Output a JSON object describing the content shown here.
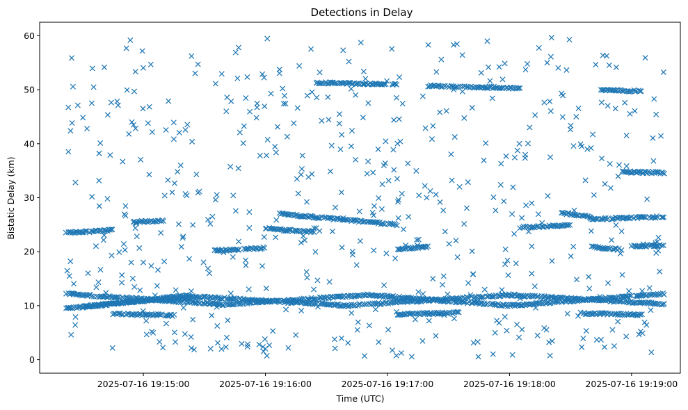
{
  "chart_data": {
    "type": "scatter",
    "title": "Detections in Delay",
    "xlabel": "Time (UTC)",
    "ylabel": "Bistatic Delay (km)",
    "marker": "x",
    "color": "#1f77b4",
    "grid": false,
    "xlim": [
      "2025-07-16 19:14:09",
      "2025-07-16 19:19:24"
    ],
    "ylim": [
      -2.5,
      62.5
    ],
    "x_ticks": [
      "2025-07-16 19:15:00",
      "2025-07-16 19:16:00",
      "2025-07-16 19:17:00",
      "2025-07-16 19:18:00",
      "2025-07-16 19:19:00"
    ],
    "y_ticks": [
      0,
      10,
      20,
      30,
      40,
      50,
      60
    ],
    "time_range": [
      "2025-07-16 19:14:22",
      "2025-07-16 19:19:16"
    ],
    "tracks": [
      {
        "x": [
          "2025-07-16 19:14:22",
          "2025-07-16 19:15:40",
          "2025-07-16 19:16:50",
          "2025-07-16 19:18:00",
          "2025-07-16 19:19:16"
        ],
        "y": [
          12.2,
          10.2,
          12.0,
          10.0,
          12.2
        ]
      },
      {
        "x": [
          "2025-07-16 19:14:22",
          "2025-07-16 19:15:20",
          "2025-07-16 19:16:40",
          "2025-07-16 19:18:00",
          "2025-07-16 19:19:16"
        ],
        "y": [
          9.5,
          11.8,
          10.0,
          12.0,
          10.3
        ]
      },
      {
        "x": [
          "2025-07-16 19:14:30",
          "2025-07-16 19:14:55",
          "2025-07-16 19:15:25"
        ],
        "y": [
          9.7,
          10.8,
          11.5
        ]
      },
      {
        "x": [
          "2025-07-16 19:14:45",
          "2025-07-16 19:15:15"
        ],
        "y": [
          8.5,
          8.2
        ]
      },
      {
        "x": [
          "2025-07-16 19:17:05",
          "2025-07-16 19:17:35"
        ],
        "y": [
          8.4,
          8.7
        ]
      },
      {
        "x": [
          "2025-07-16 19:18:35",
          "2025-07-16 19:19:05"
        ],
        "y": [
          8.6,
          8.3
        ]
      },
      {
        "x": [
          "2025-07-16 19:14:22",
          "2025-07-16 19:14:45"
        ],
        "y": [
          23.5,
          24.0
        ]
      },
      {
        "x": [
          "2025-07-16 19:14:55",
          "2025-07-16 19:15:10"
        ],
        "y": [
          25.5,
          25.8
        ]
      },
      {
        "x": [
          "2025-07-16 19:15:35",
          "2025-07-16 19:16:00"
        ],
        "y": [
          20.2,
          20.7
        ]
      },
      {
        "x": [
          "2025-07-16 19:16:00",
          "2025-07-16 19:16:25"
        ],
        "y": [
          24.3,
          23.6
        ]
      },
      {
        "x": [
          "2025-07-16 19:16:07",
          "2025-07-16 19:17:05"
        ],
        "y": [
          27.0,
          25.0
        ]
      },
      {
        "x": [
          "2025-07-16 19:16:25",
          "2025-07-16 19:17:05"
        ],
        "y": [
          51.3,
          51.0
        ]
      },
      {
        "x": [
          "2025-07-16 19:17:05",
          "2025-07-16 19:17:20"
        ],
        "y": [
          20.5,
          20.9
        ]
      },
      {
        "x": [
          "2025-07-16 19:17:20",
          "2025-07-16 19:18:05"
        ],
        "y": [
          50.7,
          50.3
        ]
      },
      {
        "x": [
          "2025-07-16 19:18:05",
          "2025-07-16 19:18:30"
        ],
        "y": [
          24.5,
          24.9
        ]
      },
      {
        "x": [
          "2025-07-16 19:18:25",
          "2025-07-16 19:18:40"
        ],
        "y": [
          27.2,
          26.5
        ]
      },
      {
        "x": [
          "2025-07-16 19:18:40",
          "2025-07-16 19:19:16"
        ],
        "y": [
          26.0,
          26.5
        ]
      },
      {
        "x": [
          "2025-07-16 19:18:40",
          "2025-07-16 19:18:55"
        ],
        "y": [
          20.9,
          20.4
        ]
      },
      {
        "x": [
          "2025-07-16 19:18:55",
          "2025-07-16 19:19:16"
        ],
        "y": [
          34.8,
          34.6
        ]
      },
      {
        "x": [
          "2025-07-16 19:18:45",
          "2025-07-16 19:19:05"
        ],
        "y": [
          50.0,
          49.7
        ]
      },
      {
        "x": [
          "2025-07-16 19:19:00",
          "2025-07-16 19:19:16"
        ],
        "y": [
          21.0,
          21.2
        ]
      }
    ],
    "scatter_y_range": [
      0.5,
      59.8
    ]
  }
}
